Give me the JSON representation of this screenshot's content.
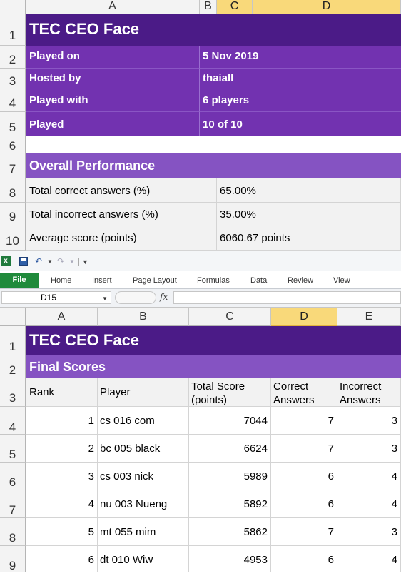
{
  "top": {
    "columns": [
      "A",
      "B",
      "C",
      "D"
    ],
    "rows": [
      "1",
      "2",
      "3",
      "4",
      "5",
      "6",
      "7",
      "8",
      "9",
      "10"
    ],
    "title": "TEC CEO Face",
    "info": [
      {
        "label": "Played on",
        "value": "5 Nov 2019"
      },
      {
        "label": "Hosted by",
        "value": "thaiall"
      },
      {
        "label": "Played with",
        "value": "6 players"
      },
      {
        "label": "Played",
        "value": "10 of 10"
      }
    ],
    "section": "Overall Performance",
    "stats": [
      {
        "label": "Total correct answers (%)",
        "value": "65.00%"
      },
      {
        "label": "Total incorrect answers (%)",
        "value": "35.00%"
      },
      {
        "label": "Average score (points)",
        "value": "6060.67 points"
      }
    ]
  },
  "ribbon": {
    "file_tab": "File",
    "tabs": [
      "Home",
      "Insert",
      "Page Layout",
      "Formulas",
      "Data",
      "Review",
      "View"
    ],
    "name_box": "D15",
    "fx": "fx"
  },
  "bottom": {
    "columns": [
      "A",
      "B",
      "C",
      "D",
      "E"
    ],
    "rows": [
      "1",
      "2",
      "3",
      "4",
      "5",
      "6",
      "7",
      "8",
      "9"
    ],
    "title": "TEC CEO Face",
    "section": "Final Scores",
    "headers": {
      "rank": "Rank",
      "player": "Player",
      "total_1": "Total Score",
      "total_2": "(points)",
      "correct_1": "Correct",
      "correct_2": "Answers",
      "incorrect_1": "Incorrect",
      "incorrect_2": "Answers"
    },
    "scores": [
      {
        "rank": "1",
        "player": "cs 016 com",
        "total": "7044",
        "correct": "7",
        "incorrect": "3"
      },
      {
        "rank": "2",
        "player": "bc 005 black",
        "total": "6624",
        "correct": "7",
        "incorrect": "3"
      },
      {
        "rank": "3",
        "player": "cs 003 nick",
        "total": "5989",
        "correct": "6",
        "incorrect": "4"
      },
      {
        "rank": "4",
        "player": "nu 003 Nueng",
        "total": "5892",
        "correct": "6",
        "incorrect": "4"
      },
      {
        "rank": "5",
        "player": "mt 055 mim",
        "total": "5862",
        "correct": "7",
        "incorrect": "3"
      },
      {
        "rank": "6",
        "player": "dt 010 Wiw",
        "total": "4953",
        "correct": "6",
        "incorrect": "4"
      }
    ]
  }
}
